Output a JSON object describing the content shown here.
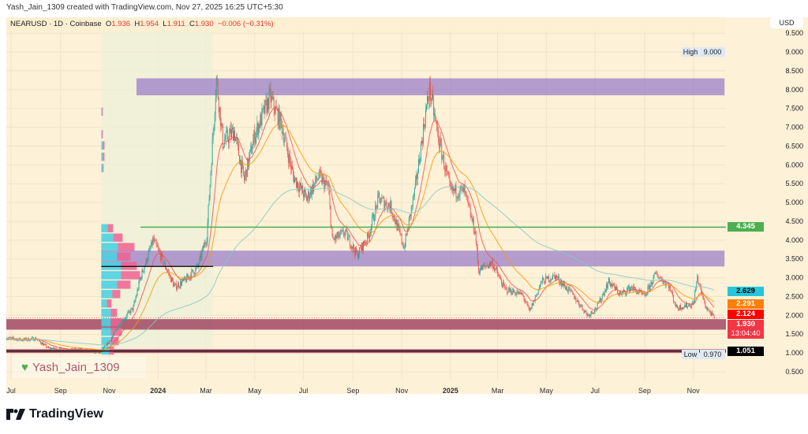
{
  "credit": "Yash_Jain_1309 created with TradingView.com, Nov 27, 2025 16:25 UTC+5:30",
  "legend": {
    "symbol": "NEARUSD · 1D · Coinbase",
    "o_label": "O",
    "o": "1.936",
    "h_label": "H",
    "h": "1.954",
    "l_label": "L",
    "l": "1.911",
    "c_label": "C",
    "c": "1.930",
    "change": "−0.006 (−0.31%)"
  },
  "currency_button": "USD",
  "watermark": "Yash_Jain_1309",
  "logo": "TradingView",
  "colors": {
    "background": "#fdf1d8",
    "up": "#26a69a",
    "down": "#ef5350",
    "ema_fast": "#ef5350",
    "ema_mid": "#ff9800",
    "ema_slow": "#80cbc4",
    "zone_purple": "#9b7fc8",
    "zone_maroon": "#9c3d5e",
    "support_green": "#4caf50"
  },
  "chart_data": {
    "type": "candlestick",
    "symbol": "NEARUSD",
    "interval": "1D",
    "ylim": [
      0.5,
      9.5
    ],
    "y_ticks": [
      "9.500",
      "9.000",
      "8.500",
      "8.000",
      "7.500",
      "7.000",
      "6.500",
      "6.000",
      "5.500",
      "5.000",
      "4.500",
      "4.000",
      "3.500",
      "3.000",
      "2.500",
      "2.000",
      "1.500",
      "1.000",
      "0.500"
    ],
    "y_tick_values": [
      9.5,
      9,
      8.5,
      8,
      7.5,
      7,
      6.5,
      6,
      5.5,
      5,
      4.5,
      4,
      3.5,
      3,
      2.5,
      2,
      1.5,
      1,
      0.5
    ],
    "x_ticks": [
      {
        "label": "Jul",
        "date": "2023-07-01"
      },
      {
        "label": "Sep",
        "date": "2023-09-01"
      },
      {
        "label": "Nov",
        "date": "2023-11-01"
      },
      {
        "label": "2024",
        "date": "2024-01-01",
        "year": true
      },
      {
        "label": "Mar",
        "date": "2024-03-01"
      },
      {
        "label": "May",
        "date": "2024-05-01"
      },
      {
        "label": "Jul",
        "date": "2024-07-01"
      },
      {
        "label": "Sep",
        "date": "2024-09-01"
      },
      {
        "label": "Nov",
        "date": "2024-11-01"
      },
      {
        "label": "2025",
        "date": "2025-01-01",
        "year": true
      },
      {
        "label": "Mar",
        "date": "2025-03-01"
      },
      {
        "label": "May",
        "date": "2025-05-01"
      },
      {
        "label": "Jul",
        "date": "2025-07-01"
      },
      {
        "label": "Sep",
        "date": "2025-09-01"
      },
      {
        "label": "Nov",
        "date": "2025-11-01"
      }
    ],
    "close_path": [
      [
        "2023-06-25",
        1.4
      ],
      [
        "2023-07-15",
        1.35
      ],
      [
        "2023-08-01",
        1.38
      ],
      [
        "2023-08-17",
        1.12
      ],
      [
        "2023-09-05",
        1.1
      ],
      [
        "2023-10-01",
        1.08
      ],
      [
        "2023-10-20",
        1.0
      ],
      [
        "2023-11-01",
        1.3
      ],
      [
        "2023-11-15",
        1.8
      ],
      [
        "2023-12-01",
        2.2
      ],
      [
        "2023-12-10",
        3.0
      ],
      [
        "2023-12-26",
        4.0
      ],
      [
        "2024-01-10",
        3.3
      ],
      [
        "2024-01-22",
        2.75
      ],
      [
        "2024-02-05",
        2.95
      ],
      [
        "2024-02-20",
        3.3
      ],
      [
        "2024-03-02",
        4.1
      ],
      [
        "2024-03-14",
        8.3
      ],
      [
        "2024-03-22",
        6.6
      ],
      [
        "2024-04-05",
        6.9
      ],
      [
        "2024-04-18",
        5.6
      ],
      [
        "2024-05-01",
        6.8
      ],
      [
        "2024-05-20",
        7.8
      ],
      [
        "2024-06-03",
        7.1
      ],
      [
        "2024-06-18",
        5.7
      ],
      [
        "2024-07-05",
        5.1
      ],
      [
        "2024-07-20",
        5.7
      ],
      [
        "2024-08-01",
        5.4
      ],
      [
        "2024-08-06",
        4.0
      ],
      [
        "2024-08-22",
        4.2
      ],
      [
        "2024-09-06",
        3.6
      ],
      [
        "2024-09-20",
        4.1
      ],
      [
        "2024-10-03",
        5.1
      ],
      [
        "2024-10-18",
        4.9
      ],
      [
        "2024-11-04",
        3.8
      ],
      [
        "2024-11-18",
        5.4
      ],
      [
        "2024-12-01",
        7.4
      ],
      [
        "2024-12-06",
        8.0
      ],
      [
        "2024-12-18",
        6.6
      ],
      [
        "2025-01-01",
        5.3
      ],
      [
        "2025-01-18",
        5.3
      ],
      [
        "2025-02-01",
        4.2
      ],
      [
        "2025-02-05",
        3.2
      ],
      [
        "2025-02-22",
        3.4
      ],
      [
        "2025-03-10",
        2.7
      ],
      [
        "2025-04-01",
        2.55
      ],
      [
        "2025-04-10",
        2.1
      ],
      [
        "2025-04-25",
        2.9
      ],
      [
        "2025-05-12",
        3.05
      ],
      [
        "2025-06-01",
        2.6
      ],
      [
        "2025-06-22",
        2.0
      ],
      [
        "2025-07-03",
        2.2
      ],
      [
        "2025-07-18",
        2.9
      ],
      [
        "2025-08-02",
        2.55
      ],
      [
        "2025-08-15",
        2.75
      ],
      [
        "2025-09-01",
        2.5
      ],
      [
        "2025-09-15",
        3.1
      ],
      [
        "2025-10-01",
        2.8
      ],
      [
        "2025-10-11",
        2.2
      ],
      [
        "2025-11-01",
        2.3
      ],
      [
        "2025-11-06",
        3.0
      ],
      [
        "2025-11-16",
        2.25
      ],
      [
        "2025-11-27",
        1.93
      ]
    ],
    "high_label": "High",
    "high": "9.000",
    "low_label": "Low",
    "low": "0.970",
    "horizontal_lines": [
      {
        "price": 4.345,
        "label": "4.345",
        "color": "#4caf50"
      },
      {
        "price": 1.051,
        "label": "1.051",
        "color": "#000000"
      }
    ],
    "zones": [
      {
        "from": 7.85,
        "to": 8.3,
        "start": "2023-12-05",
        "end": "2025-12-10",
        "color": "#9b7fc8"
      },
      {
        "from": 3.3,
        "to": 3.72,
        "start": "2023-10-22",
        "end": "2025-12-10",
        "color": "#9b7fc8"
      },
      {
        "from": 1.62,
        "to": 1.9,
        "start": "2023-06-24",
        "end": "2026-01-10",
        "color": "#9c3d5e"
      },
      {
        "from": 1.0,
        "to": 1.1,
        "start": "2023-06-24",
        "end": "2026-01-10",
        "color": "#9c3d5e"
      }
    ],
    "poc_line": {
      "price": 3.3,
      "start": "2023-10-22",
      "end": "2024-03-10"
    },
    "profile_range": {
      "start": "2023-10-22",
      "end": "2024-03-10"
    },
    "volume_profile": [
      [
        1.05,
        10,
        6
      ],
      [
        1.3,
        12,
        10
      ],
      [
        1.55,
        12,
        14
      ],
      [
        1.8,
        12,
        14
      ],
      [
        2.05,
        12,
        8
      ],
      [
        2.3,
        7,
        6
      ],
      [
        2.55,
        14,
        10
      ],
      [
        2.8,
        20,
        17
      ],
      [
        3.05,
        25,
        24
      ],
      [
        3.3,
        25,
        20
      ],
      [
        3.55,
        20,
        17
      ],
      [
        3.8,
        21,
        21
      ],
      [
        4.05,
        15,
        12
      ],
      [
        4.3,
        8,
        7
      ],
      [
        5.9,
        2,
        1
      ],
      [
        6.2,
        2,
        2
      ],
      [
        6.5,
        2,
        2
      ],
      [
        6.8,
        1,
        1
      ],
      [
        7.4,
        1,
        1
      ]
    ],
    "price_badges": [
      {
        "label": "2.629",
        "price": 2.629,
        "color": "#26c6da"
      },
      {
        "label": "2.291",
        "price": 2.291,
        "color": "#ff7f00"
      },
      {
        "label": "2.124",
        "price": 2.124,
        "color": "#ff0000"
      }
    ],
    "last_price": {
      "label": "1.930",
      "countdown": "13:04:40",
      "color": "#f23645"
    }
  }
}
